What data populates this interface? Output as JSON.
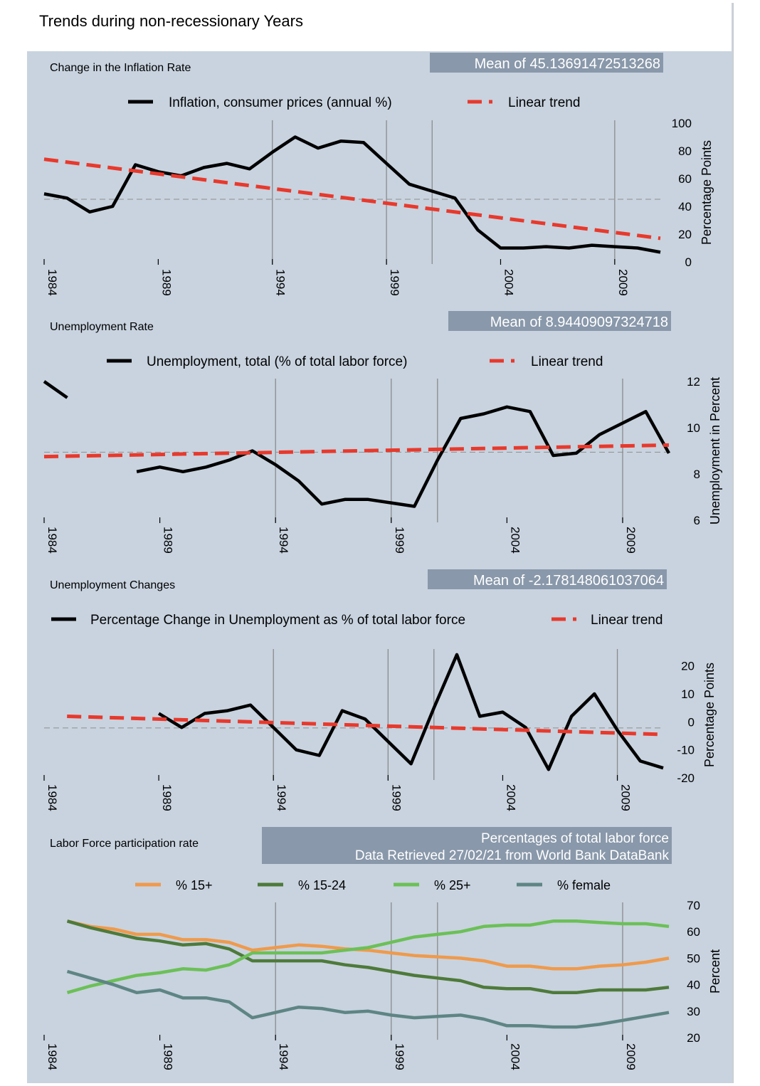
{
  "page": {
    "title": "Trends during non-recessionary Years"
  },
  "colors": {
    "panel_bg": "#c8d3df",
    "badge_bg": "#8998aa",
    "series_black": "#000000",
    "trend_red": "#e8392c",
    "orange": "#ef9a4c",
    "dark_green": "#4e7a3a",
    "light_green": "#6cc057",
    "slate": "#5e8584"
  },
  "chart_data": [
    {
      "type": "line",
      "title": "Change in the Inflation Rate",
      "badge": "Mean of 45.13691472513268",
      "ylabel": "Percentage Points",
      "ylim": [
        0,
        100
      ],
      "yticks": [
        0,
        20,
        40,
        60,
        80,
        100
      ],
      "x_ticks": [
        "1984",
        "1989",
        "1994",
        "1999",
        "2004",
        "2009"
      ],
      "vlines": [
        1994,
        1999,
        2001,
        2009
      ],
      "mean": 45.13691472513268,
      "legend": [
        "Inflation, consumer prices (annual %)",
        "Linear trend"
      ],
      "series": [
        {
          "name": "Inflation, consumer prices (annual %)",
          "style": "solid",
          "x": [
            1984,
            1985,
            1986,
            1987,
            1988,
            1989,
            1990,
            1991,
            1992,
            1993,
            1994,
            1995,
            1996,
            1997,
            1998,
            1999,
            2000,
            2001,
            2002,
            2003,
            2004,
            2005,
            2006,
            2007,
            2008,
            2009,
            2010,
            2011
          ],
          "y": [
            49,
            46,
            36,
            40,
            70,
            65,
            62,
            68,
            71,
            67,
            79,
            90,
            82,
            87,
            86,
            71,
            56,
            51,
            46,
            23,
            10,
            10,
            11,
            10,
            12,
            11,
            10,
            7
          ]
        },
        {
          "name": "Linear trend",
          "style": "dashed",
          "x": [
            1984,
            2011
          ],
          "y": [
            74,
            17
          ]
        }
      ]
    },
    {
      "type": "line",
      "title": "Unemployment Rate",
      "badge": "Mean of 8.94409097324718",
      "ylabel": "Unemployment in Percent",
      "ylim": [
        6,
        12
      ],
      "yticks": [
        6,
        8,
        10,
        12
      ],
      "x_ticks": [
        "1984",
        "1989",
        "1994",
        "1999",
        "2004",
        "2009"
      ],
      "vlines": [
        1994,
        1999,
        2001,
        2009
      ],
      "mean": 8.94409097324718,
      "legend": [
        "Unemployment, total (% of total labor force)",
        "Linear trend"
      ],
      "series": [
        {
          "name": "Unemployment, total (% of total labor force)",
          "style": "solid",
          "x": [
            1984,
            1985,
            1986,
            1987,
            1988,
            1989,
            1990,
            1991,
            1992,
            1993,
            1994,
            1995,
            1996,
            1997,
            1998,
            1999,
            2000,
            2001,
            2002,
            2003,
            2004,
            2005,
            2006,
            2007,
            2008,
            2009,
            2010,
            2011
          ],
          "y": [
            12,
            11.3,
            null,
            null,
            8.1,
            8.3,
            8.1,
            8.3,
            8.6,
            9.0,
            8.4,
            7.7,
            6.7,
            6.9,
            6.9,
            6.75,
            6.6,
            8.6,
            10.4,
            10.6,
            10.9,
            10.7,
            8.8,
            8.9,
            9.7,
            10.2,
            10.7,
            8.9
          ]
        },
        {
          "name": "Linear trend",
          "style": "dashed",
          "x": [
            1984,
            2011
          ],
          "y": [
            8.75,
            9.25
          ]
        }
      ]
    },
    {
      "type": "line",
      "title": "Unemployment Changes",
      "badge": "Mean of -2.178148061037064",
      "ylabel": "Percentage Points",
      "ylim": [
        -20,
        25
      ],
      "yticks": [
        -20,
        -10,
        0,
        10,
        20
      ],
      "x_ticks": [
        "1984",
        "1989",
        "1994",
        "1999",
        "2004",
        "2009"
      ],
      "vlines": [
        1994,
        1999,
        2001,
        2009
      ],
      "mean": -2.178148061037064,
      "legend": [
        "Percentage Change in Unemployment as % of total labor force",
        "Linear trend"
      ],
      "series": [
        {
          "name": "Percentage Change in Unemployment as % of total labor force",
          "style": "solid",
          "x": [
            1989,
            1990,
            1991,
            1992,
            1993,
            1994,
            1995,
            1996,
            1997,
            1998,
            1999,
            2000,
            2001,
            2002,
            2003,
            2004,
            2005,
            2006,
            2007,
            2008,
            2009,
            2010,
            2011
          ],
          "y": [
            3,
            -2,
            3,
            4,
            6,
            -2,
            -10,
            -12,
            4,
            1,
            -7,
            -15,
            5,
            24,
            2,
            3.5,
            -2,
            -17,
            2,
            10,
            -3,
            -14,
            -16.5
          ]
        },
        {
          "name": "Linear trend",
          "style": "dashed",
          "x": [
            1985,
            2011
          ],
          "y": [
            2,
            -4.5
          ]
        }
      ]
    },
    {
      "type": "line",
      "title": "Labor Force participation rate",
      "badge": [
        "Percentages of total labor force",
        "Data Retrieved 27/02/21 from World Bank DataBank"
      ],
      "ylabel": "Percent",
      "ylim": [
        20,
        70
      ],
      "yticks": [
        20,
        30,
        40,
        50,
        60,
        70
      ],
      "x_ticks": [
        "1984",
        "1989",
        "1994",
        "1999",
        "2004",
        "2009"
      ],
      "vlines": [
        1994,
        1999,
        2001,
        2009
      ],
      "legend": [
        "% 15+",
        "% 15-24",
        "% 25+",
        "% female"
      ],
      "x": [
        1985,
        1986,
        1987,
        1988,
        1989,
        1990,
        1991,
        1992,
        1993,
        1994,
        1995,
        1996,
        1997,
        1998,
        1999,
        2000,
        2001,
        2002,
        2003,
        2004,
        2005,
        2006,
        2007,
        2008,
        2009,
        2010,
        2011
      ],
      "series": [
        {
          "name": "% 15+",
          "color": "orange",
          "values": [
            64,
            62,
            61,
            59,
            59,
            57,
            57,
            56,
            53,
            54,
            55,
            54.5,
            53.5,
            53,
            52,
            51,
            50.5,
            50,
            49,
            47,
            47,
            46,
            46,
            47,
            47.5,
            48.5,
            50
          ]
        },
        {
          "name": "% 15-24",
          "color": "dark_green",
          "values": [
            64,
            61.5,
            59.5,
            57.5,
            56.5,
            55,
            55.5,
            53.5,
            49,
            49,
            49,
            49,
            47.5,
            46.5,
            45,
            43.5,
            42.5,
            41.5,
            39,
            38.5,
            38.5,
            37,
            37,
            38,
            38,
            38,
            39
          ]
        },
        {
          "name": "% 25+",
          "color": "light_green",
          "values": [
            37,
            39.5,
            41.5,
            43.5,
            44.5,
            46,
            45.5,
            47.5,
            52,
            52,
            52,
            52,
            53,
            54,
            56,
            58,
            59,
            60,
            62,
            62.5,
            62.5,
            64,
            64,
            63.5,
            63,
            63,
            62
          ]
        },
        {
          "name": "% female",
          "color": "slate",
          "values": [
            45,
            42.5,
            40,
            37,
            38,
            35,
            35,
            33.5,
            27.5,
            29.5,
            31.5,
            31,
            29.5,
            30,
            28.5,
            27.5,
            28,
            28.5,
            27,
            24.5,
            24.5,
            24,
            24,
            25,
            26.5,
            28,
            29.5
          ]
        }
      ]
    }
  ]
}
